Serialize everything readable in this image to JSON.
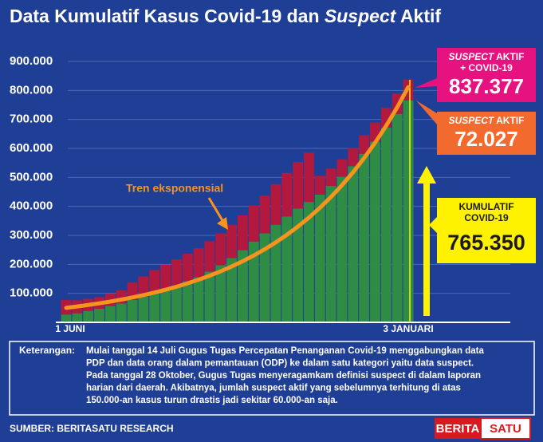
{
  "chart_data": {
    "type": "stacked-bar",
    "title_parts": [
      "Data Kumulatif Kasus Covid-19 dan ",
      "Suspect",
      " Aktif"
    ],
    "categories": [
      "1 JUNI",
      null,
      null,
      null,
      null,
      null,
      null,
      null,
      null,
      null,
      null,
      null,
      null,
      null,
      null,
      null,
      null,
      null,
      null,
      null,
      null,
      null,
      null,
      null,
      null,
      null,
      null,
      null,
      null,
      null,
      null,
      "3 JANUARI"
    ],
    "series": [
      {
        "color": "#2f8c45",
        "values": [
          26940,
          31186,
          39294,
          46845,
          56385,
          64958,
          76981,
          88214,
          100303,
          113134,
          127083,
          141370,
          155412,
          174796,
          196989,
          221523,
          248852,
          278722,
          307120,
          336716,
          365240,
          392934,
          415402,
          440569,
          470648,
          502110,
          538883,
          581550,
          623309,
          671778,
          719219,
          765350
        ]
      },
      {
        "color": "#b3193f",
        "values": [
          50000,
          45000,
          42000,
          40000,
          42000,
          45000,
          60000,
          70000,
          80000,
          85000,
          90000,
          95000,
          100000,
          105000,
          110000,
          115000,
          120000,
          125000,
          130000,
          140000,
          150000,
          160000,
          170000,
          65000,
          60000,
          60000,
          62000,
          64000,
          66000,
          68000,
          70000,
          72027
        ]
      }
    ],
    "trend": {
      "label": "Tren eksponensial",
      "color": "#f7941d",
      "values": [
        50000,
        54700,
        59850,
        65480,
        71640,
        78380,
        85750,
        93820,
        102650,
        112300,
        122870,
        134430,
        147070,
        160900,
        176040,
        192600,
        210720,
        230540,
        252230,
        275950,
        301910,
        330310,
        361380,
        395370,
        432560,
        473250,
        517760,
        566460,
        619750,
        678040,
        741820,
        811600
      ]
    },
    "ylim": [
      0,
      900000
    ],
    "yticks": [
      {
        "value": 100000,
        "label": "100.000"
      },
      {
        "value": 200000,
        "label": "200.000"
      },
      {
        "value": 300000,
        "label": "300.000"
      },
      {
        "value": 400000,
        "label": "400.000"
      },
      {
        "value": 500000,
        "label": "500.000"
      },
      {
        "value": 600000,
        "label": "600.000"
      },
      {
        "value": 700000,
        "label": "700.000"
      },
      {
        "value": 800000,
        "label": "800.000"
      },
      {
        "value": 900000,
        "label": "900.000"
      }
    ],
    "grid": true,
    "callouts": [
      {
        "color": "#e6127f",
        "line1": [
          "SUSPECT",
          " AKTIF"
        ],
        "line2": "+ COVID-19",
        "number": "837.377"
      },
      {
        "color": "#f26a2e",
        "line1": [
          "SUSPECT",
          " AKTIF"
        ],
        "number": "72.027"
      },
      {
        "color": "#fff200",
        "line1": [
          "KUMULATIF",
          ""
        ],
        "line2": "COVID-19",
        "number": "765.350"
      }
    ],
    "note": {
      "label": "Keterangan:",
      "lines": [
        "Mulai tanggal 14 Juli Gugus Tugas Percepatan Penanganan Covid-19 menggabungkan data",
        "PDP dan data orang dalam pemantauan (ODP) ke dalam satu kategori yaitu data suspect.",
        "Pada tanggal 28 Oktober, Gugus Tugas menyeragamkam definisi suspect di dalam  laporan",
        "harian dari daerah. Akibatnya, jumlah suspect aktif yang sebelumnya terhitung di atas",
        "150.000-an kasus turun drastis jadi sekitar 60.000-an saja."
      ]
    },
    "source": "SUMBER: BERITASATU RESEARCH",
    "logo": [
      "BERITA",
      "SATU"
    ]
  }
}
